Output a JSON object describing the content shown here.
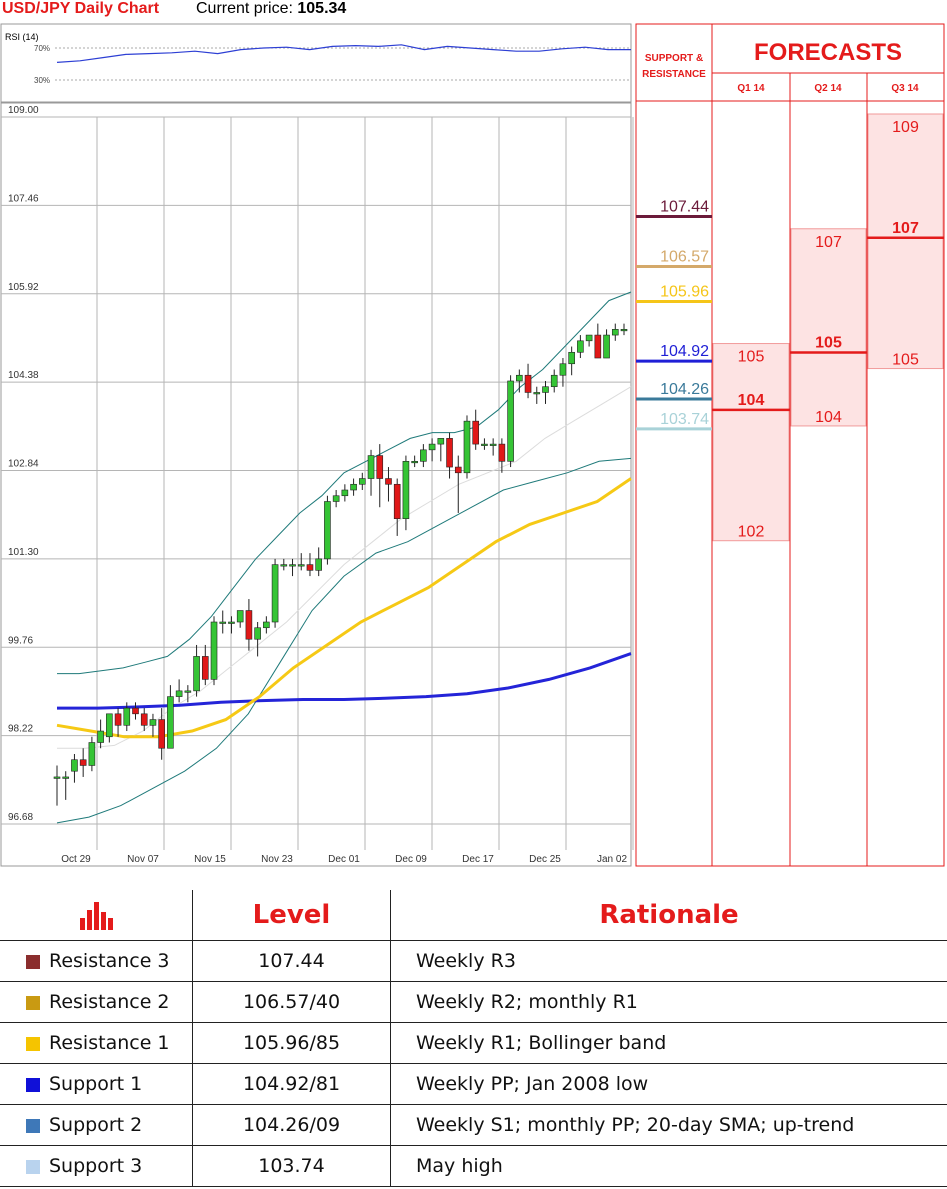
{
  "header": {
    "title": "USD/JPY Daily Chart",
    "price_label": "Current price:",
    "price_value": "105.34"
  },
  "rsi_panel": {
    "label": "RSI (14)",
    "levels": [
      "70%",
      "30%"
    ]
  },
  "forecast_panel": {
    "title": "FORECASTS",
    "sr_label_line1": "SUPPORT &",
    "sr_label_line2": "RESISTANCE",
    "quarters": [
      "Q1 14",
      "Q2 14",
      "Q3 14"
    ],
    "sr_levels": [
      {
        "value": "107.44",
        "color": "#6b1a3a"
      },
      {
        "value": "106.57",
        "color": "#d4a96a"
      },
      {
        "value": "105.96",
        "color": "#f5c518"
      },
      {
        "value": "104.92",
        "color": "#1f1fd6"
      },
      {
        "value": "104.26",
        "color": "#3a7a9a"
      },
      {
        "value": "103.74",
        "color": "#a9d2d8"
      }
    ],
    "forecast_bands": [
      {
        "quarter": "Q1 14",
        "high": "105",
        "mid": "104",
        "low": "102"
      },
      {
        "quarter": "Q2 14",
        "high": "107",
        "mid": "105",
        "low": "104"
      },
      {
        "quarter": "Q3 14",
        "high": "109",
        "mid": "107",
        "low": "105"
      }
    ],
    "accent_color": "#e41b1b"
  },
  "table": {
    "headers": {
      "level": "Level",
      "rationale": "Rationale"
    },
    "icon": "bar-chart-icon",
    "rows": [
      {
        "name": "Resistance 3",
        "level": "107.44",
        "rationale": "Weekly R3",
        "color": "#8b2e2e"
      },
      {
        "name": "Resistance 2",
        "level": "106.57/40",
        "rationale": "Weekly R2; monthly R1",
        "color": "#c99a12"
      },
      {
        "name": "Resistance 1",
        "level": "105.96/85",
        "rationale": "Weekly R1; Bollinger band",
        "color": "#f5c400"
      },
      {
        "name": "Support 1",
        "level": "104.92/81",
        "rationale": "Weekly PP; Jan 2008 low",
        "color": "#1010d8"
      },
      {
        "name": "Support 2",
        "level": "104.26/09",
        "rationale": "Weekly S1; monthly PP; 20-day SMA; up-trend",
        "color": "#3e78b8"
      },
      {
        "name": "Support 3",
        "level": "103.74",
        "rationale": "May high",
        "color": "#b9d3ee"
      }
    ]
  },
  "chart_data": {
    "type": "candlestick",
    "y_ticks": [
      "109.00",
      "107.46",
      "105.92",
      "104.38",
      "102.84",
      "101.30",
      "99.76",
      "98.22",
      "96.68"
    ],
    "ylim": [
      96.68,
      109.0
    ],
    "x_ticks": [
      "Oct 29",
      "Nov 07",
      "Nov 15",
      "Nov 23",
      "Dec 01",
      "Dec 09",
      "Dec 17",
      "Dec 25",
      "Jan 02"
    ],
    "candles": [
      {
        "o": 97.5,
        "h": 97.7,
        "l": 97.0,
        "c": 97.5
      },
      {
        "o": 97.5,
        "h": 97.6,
        "l": 97.1,
        "c": 97.5
      },
      {
        "o": 97.6,
        "h": 97.9,
        "l": 97.4,
        "c": 97.8
      },
      {
        "o": 97.8,
        "h": 98.0,
        "l": 97.5,
        "c": 97.7
      },
      {
        "o": 97.7,
        "h": 98.2,
        "l": 97.6,
        "c": 98.1
      },
      {
        "o": 98.1,
        "h": 98.5,
        "l": 98.0,
        "c": 98.3
      },
      {
        "o": 98.2,
        "h": 98.6,
        "l": 98.1,
        "c": 98.6
      },
      {
        "o": 98.6,
        "h": 98.7,
        "l": 98.2,
        "c": 98.4
      },
      {
        "o": 98.4,
        "h": 98.8,
        "l": 98.3,
        "c": 98.7
      },
      {
        "o": 98.7,
        "h": 98.8,
        "l": 98.5,
        "c": 98.6
      },
      {
        "o": 98.6,
        "h": 98.7,
        "l": 98.3,
        "c": 98.4
      },
      {
        "o": 98.4,
        "h": 98.6,
        "l": 98.2,
        "c": 98.5
      },
      {
        "o": 98.5,
        "h": 98.7,
        "l": 97.8,
        "c": 98.0
      },
      {
        "o": 98.0,
        "h": 99.1,
        "l": 98.0,
        "c": 98.9
      },
      {
        "o": 98.9,
        "h": 99.2,
        "l": 98.8,
        "c": 99.0
      },
      {
        "o": 99.0,
        "h": 99.1,
        "l": 98.8,
        "c": 99.0
      },
      {
        "o": 99.0,
        "h": 99.8,
        "l": 98.9,
        "c": 99.6
      },
      {
        "o": 99.6,
        "h": 99.8,
        "l": 99.1,
        "c": 99.2
      },
      {
        "o": 99.2,
        "h": 100.3,
        "l": 99.1,
        "c": 100.2
      },
      {
        "o": 100.2,
        "h": 100.4,
        "l": 100.0,
        "c": 100.2
      },
      {
        "o": 100.2,
        "h": 100.3,
        "l": 100.0,
        "c": 100.2
      },
      {
        "o": 100.2,
        "h": 100.4,
        "l": 100.1,
        "c": 100.4
      },
      {
        "o": 100.4,
        "h": 100.6,
        "l": 99.7,
        "c": 99.9
      },
      {
        "o": 99.9,
        "h": 100.2,
        "l": 99.6,
        "c": 100.1
      },
      {
        "o": 100.1,
        "h": 100.3,
        "l": 100.0,
        "c": 100.2
      },
      {
        "o": 100.2,
        "h": 101.3,
        "l": 100.1,
        "c": 101.2
      },
      {
        "o": 101.2,
        "h": 101.3,
        "l": 101.1,
        "c": 101.2
      },
      {
        "o": 101.2,
        "h": 101.3,
        "l": 101.0,
        "c": 101.2
      },
      {
        "o": 101.2,
        "h": 101.4,
        "l": 101.1,
        "c": 101.2
      },
      {
        "o": 101.2,
        "h": 101.4,
        "l": 101.0,
        "c": 101.1
      },
      {
        "o": 101.1,
        "h": 101.5,
        "l": 101.0,
        "c": 101.3
      },
      {
        "o": 101.3,
        "h": 102.4,
        "l": 101.2,
        "c": 102.3
      },
      {
        "o": 102.3,
        "h": 102.5,
        "l": 102.2,
        "c": 102.4
      },
      {
        "o": 102.4,
        "h": 102.6,
        "l": 102.3,
        "c": 102.5
      },
      {
        "o": 102.5,
        "h": 102.7,
        "l": 102.4,
        "c": 102.6
      },
      {
        "o": 102.6,
        "h": 102.8,
        "l": 102.5,
        "c": 102.7
      },
      {
        "o": 102.7,
        "h": 103.2,
        "l": 102.4,
        "c": 103.1
      },
      {
        "o": 103.1,
        "h": 103.3,
        "l": 102.2,
        "c": 102.7
      },
      {
        "o": 102.7,
        "h": 102.9,
        "l": 102.3,
        "c": 102.6
      },
      {
        "o": 102.6,
        "h": 102.7,
        "l": 101.7,
        "c": 102.0
      },
      {
        "o": 102.0,
        "h": 103.1,
        "l": 101.8,
        "c": 103.0
      },
      {
        "o": 103.0,
        "h": 103.1,
        "l": 102.9,
        "c": 103.0
      },
      {
        "o": 103.0,
        "h": 103.3,
        "l": 102.9,
        "c": 103.2
      },
      {
        "o": 103.2,
        "h": 103.4,
        "l": 103.0,
        "c": 103.3
      },
      {
        "o": 103.3,
        "h": 103.4,
        "l": 103.0,
        "c": 103.4
      },
      {
        "o": 103.4,
        "h": 103.5,
        "l": 102.7,
        "c": 102.9
      },
      {
        "o": 102.9,
        "h": 103.1,
        "l": 102.1,
        "c": 102.8
      },
      {
        "o": 102.8,
        "h": 103.8,
        "l": 102.7,
        "c": 103.7
      },
      {
        "o": 103.7,
        "h": 103.9,
        "l": 103.2,
        "c": 103.3
      },
      {
        "o": 103.3,
        "h": 103.4,
        "l": 103.2,
        "c": 103.3
      },
      {
        "o": 103.3,
        "h": 103.4,
        "l": 103.1,
        "c": 103.3
      },
      {
        "o": 103.3,
        "h": 103.4,
        "l": 102.8,
        "c": 103.0
      },
      {
        "o": 103.0,
        "h": 104.5,
        "l": 102.9,
        "c": 104.4
      },
      {
        "o": 104.4,
        "h": 104.6,
        "l": 104.2,
        "c": 104.5
      },
      {
        "o": 104.5,
        "h": 104.7,
        "l": 104.1,
        "c": 104.2
      },
      {
        "o": 104.2,
        "h": 104.3,
        "l": 104.0,
        "c": 104.2
      },
      {
        "o": 104.2,
        "h": 104.4,
        "l": 104.0,
        "c": 104.3
      },
      {
        "o": 104.3,
        "h": 104.6,
        "l": 104.2,
        "c": 104.5
      },
      {
        "o": 104.5,
        "h": 104.8,
        "l": 104.3,
        "c": 104.7
      },
      {
        "o": 104.7,
        "h": 105.0,
        "l": 104.5,
        "c": 104.9
      },
      {
        "o": 104.9,
        "h": 105.2,
        "l": 104.8,
        "c": 105.1
      },
      {
        "o": 105.1,
        "h": 105.2,
        "l": 105.0,
        "c": 105.2
      },
      {
        "o": 105.2,
        "h": 105.4,
        "l": 104.8,
        "c": 104.8
      },
      {
        "o": 104.8,
        "h": 105.3,
        "l": 104.8,
        "c": 105.2
      },
      {
        "o": 105.2,
        "h": 105.4,
        "l": 105.1,
        "c": 105.3
      },
      {
        "o": 105.3,
        "h": 105.4,
        "l": 105.2,
        "c": 105.3
      }
    ],
    "bollinger_upper": [
      99.3,
      99.3,
      99.35,
      99.4,
      99.5,
      99.6,
      99.9,
      100.3,
      100.8,
      101.3,
      101.7,
      102.1,
      102.4,
      102.8,
      103.0,
      103.2,
      103.4,
      103.5,
      103.5,
      103.6,
      103.9,
      104.3,
      104.6,
      105.0,
      105.4,
      105.8,
      105.95
    ],
    "bollinger_middle": [
      98.0,
      98.0,
      98.05,
      98.3,
      98.7,
      99.0,
      99.4,
      99.8,
      100.2,
      100.7,
      101.2,
      101.6,
      102.0,
      102.3,
      102.6,
      102.8,
      103.0,
      103.4,
      103.7,
      104.0,
      104.3
    ],
    "bollinger_lower": [
      96.7,
      96.8,
      97.0,
      97.3,
      97.6,
      98.0,
      98.6,
      99.5,
      100.4,
      101.0,
      101.4,
      101.6,
      101.9,
      102.2,
      102.5,
      102.65,
      102.8,
      103.0,
      103.05
    ],
    "sma_yellow": [
      98.4,
      98.3,
      98.2,
      98.2,
      98.3,
      98.5,
      98.9,
      99.4,
      99.8,
      100.2,
      100.5,
      100.8,
      101.2,
      101.6,
      101.9,
      102.1,
      102.3,
      102.7
    ],
    "sma_blue": [
      98.7,
      98.7,
      98.72,
      98.75,
      98.8,
      98.83,
      98.85,
      98.85,
      98.87,
      98.9,
      98.95,
      99.05,
      99.2,
      99.4,
      99.65
    ],
    "rsi": [
      52,
      54,
      58,
      62,
      63,
      64,
      66,
      63,
      68,
      70,
      71,
      68,
      72,
      73,
      72,
      74,
      68,
      72,
      70,
      68,
      66,
      66,
      69,
      71,
      68,
      68
    ]
  }
}
